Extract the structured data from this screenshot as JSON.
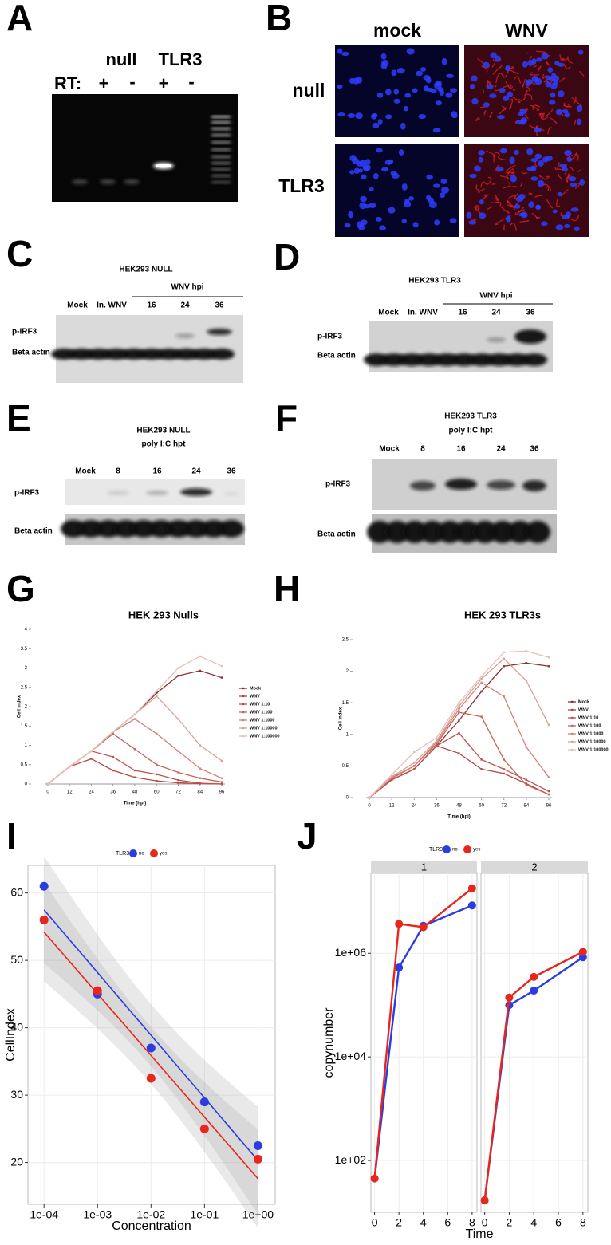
{
  "figure": {
    "A": {
      "label": "A",
      "lanes": [
        "null",
        "TLR3"
      ],
      "rt_label": "RT:",
      "rt": [
        "+",
        "-",
        "+",
        "-"
      ]
    },
    "B": {
      "label": "B",
      "columns": [
        "mock",
        "WNV"
      ],
      "rows": [
        "null",
        "TLR3"
      ]
    },
    "C": {
      "label": "C",
      "title": "HEK293 NULL",
      "group": "WNV hpi",
      "lanes": [
        "Mock",
        "In. WNV",
        "16",
        "24",
        "36"
      ],
      "rows": [
        "p-IRF3",
        "Beta actin"
      ]
    },
    "D": {
      "label": "D",
      "title": "HEK293 TLR3",
      "group": "WNV hpi",
      "lanes": [
        "Mock",
        "In. WNV",
        "16",
        "24",
        "36"
      ],
      "rows": [
        "p-IRF3",
        "Beta actin"
      ]
    },
    "E": {
      "label": "E",
      "title": "HEK293 NULL",
      "subtitle": "poly I:C hpt",
      "lanes": [
        "Mock",
        "8",
        "16",
        "24",
        "36"
      ],
      "rows": [
        "p-IRF3",
        "Beta actin"
      ]
    },
    "F": {
      "label": "F",
      "title": "HEK293 TLR3",
      "subtitle": "poly I:C hpt",
      "lanes": [
        "Mock",
        "8",
        "16",
        "24",
        "36"
      ],
      "rows": [
        "p-IRF3",
        "Beta actin"
      ]
    },
    "chart_labels": [
      "G",
      "H",
      "I",
      "J"
    ]
  },
  "chart_data": [
    {
      "type": "line",
      "title": "HEK 293 Nulls",
      "xlabel": "Time (hpi)",
      "ylabel": "Cell Index",
      "x": [
        0,
        12,
        24,
        36,
        48,
        60,
        72,
        84,
        96
      ],
      "xlim": [
        0,
        96
      ],
      "xticks": [
        0,
        12,
        24,
        36,
        48,
        60,
        72,
        84,
        96
      ],
      "ylim": [
        0,
        4
      ],
      "yticks": [
        0,
        0.5,
        1,
        1.5,
        2,
        2.5,
        3,
        3.5,
        4
      ],
      "legend": "right",
      "series": [
        {
          "name": "Mock",
          "color": "#8b3232",
          "values": [
            0,
            0.45,
            0.85,
            1.35,
            1.8,
            2.35,
            2.8,
            2.93,
            2.75
          ]
        },
        {
          "name": "WNV",
          "color": "#b5473f",
          "values": [
            0,
            0.45,
            0.65,
            0.35,
            0.17,
            0.08,
            0.03,
            0.01,
            0
          ]
        },
        {
          "name": "WNV 1:10",
          "color": "#c0504d",
          "values": [
            0,
            0.45,
            0.85,
            0.7,
            0.35,
            0.25,
            0.1,
            0.02,
            0
          ]
        },
        {
          "name": "WNV 1:100",
          "color": "#c5665a",
          "values": [
            0,
            0.45,
            0.85,
            1.3,
            0.9,
            0.5,
            0.3,
            0.15,
            0.05
          ]
        },
        {
          "name": "WNV 1:1000",
          "color": "#d08579",
          "values": [
            0,
            0.45,
            0.85,
            1.35,
            1.68,
            1.3,
            0.85,
            0.4,
            0.15
          ]
        },
        {
          "name": "WNV 1:10000",
          "color": "#dba198",
          "values": [
            0,
            0.45,
            0.85,
            1.35,
            1.8,
            2.27,
            1.68,
            1,
            0.6
          ]
        },
        {
          "name": "WNV 1:100000",
          "color": "#e6c0ba",
          "values": [
            0,
            0.45,
            0.85,
            1.35,
            1.8,
            2.4,
            3,
            3.3,
            3.05
          ]
        }
      ]
    },
    {
      "type": "line",
      "title": "HEK 293 TLR3s",
      "xlabel": "Time (hpi)",
      "ylabel": "Cell Index",
      "x": [
        0,
        12,
        24,
        36,
        48,
        60,
        72,
        84,
        96
      ],
      "xlim": [
        0,
        96
      ],
      "xticks": [
        0,
        12,
        24,
        36,
        48,
        60,
        72,
        84,
        96
      ],
      "ylim": [
        0,
        2.5
      ],
      "yticks": [
        0,
        0.5,
        1,
        1.5,
        2,
        2.5
      ],
      "legend": "right",
      "series": [
        {
          "name": "Mock",
          "color": "#8b3232",
          "values": [
            0,
            0.28,
            0.45,
            0.82,
            1.22,
            1.68,
            2.08,
            2.13,
            2.08
          ]
        },
        {
          "name": "WNV",
          "color": "#b5473f",
          "values": [
            0,
            0.28,
            0.45,
            0.82,
            0.7,
            0.45,
            0.38,
            0.22,
            0.05
          ]
        },
        {
          "name": "WNV 1:10",
          "color": "#c0504d",
          "values": [
            0,
            0.28,
            0.45,
            0.82,
            1.02,
            0.6,
            0.45,
            0.28,
            0.1
          ]
        },
        {
          "name": "WNV 1:100",
          "color": "#c5665a",
          "values": [
            0,
            0.3,
            0.5,
            0.85,
            1.35,
            1.28,
            0.6,
            0.2,
            0.05
          ]
        },
        {
          "name": "WNV 1:1000",
          "color": "#d08579",
          "values": [
            0,
            0.32,
            0.5,
            0.88,
            1.4,
            1.82,
            1.6,
            0.8,
            0.32
          ]
        },
        {
          "name": "WNV 1:10000",
          "color": "#dba198",
          "values": [
            0,
            0.33,
            0.55,
            0.9,
            1.45,
            1.88,
            2.2,
            1.85,
            1.15
          ]
        },
        {
          "name": "WNV 1:100000",
          "color": "#e6c0ba",
          "values": [
            0,
            0.36,
            0.72,
            0.95,
            1.5,
            1.92,
            2.3,
            2.32,
            2.22
          ]
        }
      ]
    },
    {
      "type": "scatter",
      "xlabel": "Concentration",
      "ylabel": "CellIndex",
      "legend_title": "TLR3",
      "legend": "top",
      "log_x": true,
      "grid": true,
      "trend_line": true,
      "x": [
        0.0001,
        0.001,
        0.01,
        0.1,
        1
      ],
      "xlim": [
        5e-05,
        2.1
      ],
      "xticks": [
        {
          "value": 0.0001,
          "label": "1e-04"
        },
        {
          "value": 0.001,
          "label": "1e-03"
        },
        {
          "value": 0.01,
          "label": "1e-02"
        },
        {
          "value": 0.1,
          "label": "1e-01"
        },
        {
          "value": 1,
          "label": "1e+00"
        }
      ],
      "ylim": [
        13.8,
        64.1
      ],
      "yticks": [
        20,
        30,
        40,
        50,
        60
      ],
      "series": [
        {
          "name": "no",
          "color": "#2b3de0",
          "values": [
            61,
            45,
            37,
            29,
            22.5
          ]
        },
        {
          "name": "yes",
          "color": "#e8261c",
          "values": [
            56,
            45.5,
            32.5,
            25,
            20.5
          ]
        }
      ]
    },
    {
      "type": "line",
      "xlabel": "Time",
      "ylabel": "copynumber",
      "legend_title": "TLR3",
      "legend": "top",
      "log_y": true,
      "grid": true,
      "xlim": [
        -0.3,
        8.4
      ],
      "xticks": [
        0,
        2,
        4,
        6,
        8
      ],
      "ylim": [
        10,
        35000000
      ],
      "yticks": [
        {
          "value": 100,
          "label": "1e+02"
        },
        {
          "value": 10000,
          "label": "1e+04"
        },
        {
          "value": 1000000,
          "label": "1e+06"
        }
      ],
      "series": [
        {
          "name": "no",
          "color": "#2b3de0"
        },
        {
          "name": "yes",
          "color": "#e8261c"
        }
      ],
      "facets": [
        {
          "label": "1",
          "x": [
            0,
            2,
            4,
            8
          ],
          "values": [
            [
              45,
              530000,
              3400000,
              8400000
            ],
            [
              45,
              3700000,
              3200000,
              18000000
            ]
          ]
        },
        {
          "label": "2",
          "x": [
            0,
            2,
            4,
            8
          ],
          "values": [
            [
              17,
              100000,
              190000,
              840000
            ],
            [
              17,
              140000,
              350000,
              1070000
            ]
          ]
        }
      ]
    }
  ]
}
